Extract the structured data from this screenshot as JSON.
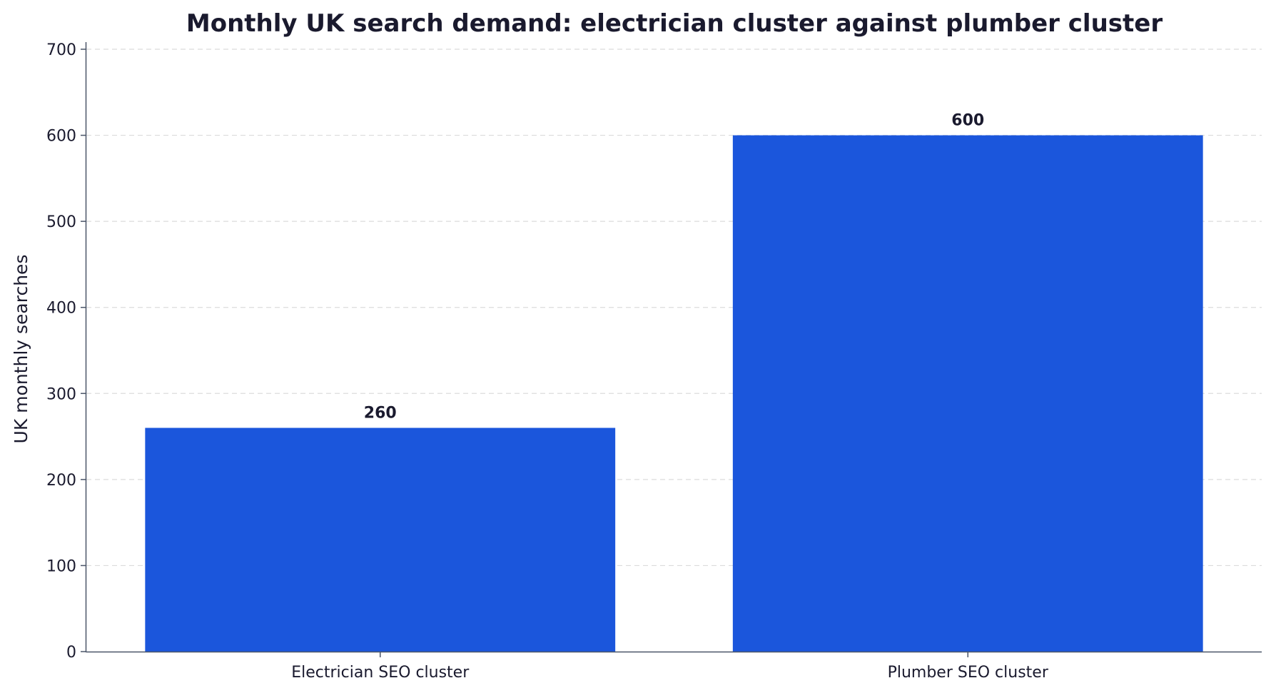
{
  "chart_data": {
    "type": "bar",
    "title": "Monthly UK search demand: electrician cluster against plumber cluster",
    "xlabel": "",
    "ylabel": "UK monthly searches",
    "categories": [
      "Electrician SEO cluster",
      "Plumber SEO cluster"
    ],
    "values": [
      260,
      600
    ],
    "data_labels": [
      "260",
      "600"
    ],
    "ylim": [
      0,
      700
    ],
    "yticks": [
      0,
      100,
      200,
      300,
      400,
      500,
      600,
      700
    ],
    "ytick_labels": [
      "0",
      "100",
      "200",
      "300",
      "400",
      "500",
      "600",
      "700"
    ],
    "grid": "horizontal dashed",
    "legend": "none",
    "bar_color": "#1b56dc"
  }
}
